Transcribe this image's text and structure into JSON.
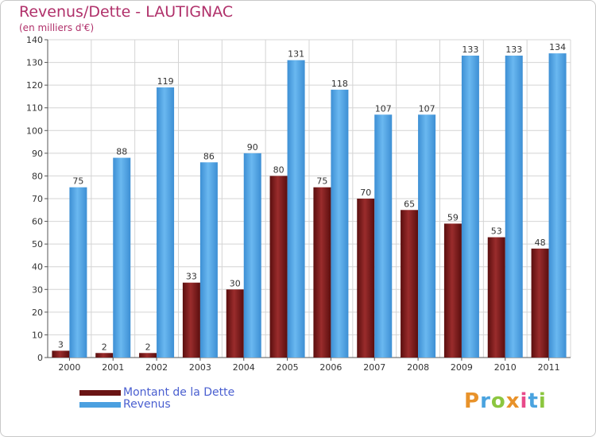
{
  "chart_data": {
    "type": "bar",
    "title": "Revenus/Dette - LAUTIGNAC",
    "subtitle": "(en milliers d'€)",
    "xlabel": "",
    "ylabel": "",
    "ylim": [
      0,
      140
    ],
    "yticks": [
      0,
      10,
      20,
      30,
      40,
      50,
      60,
      70,
      80,
      90,
      100,
      110,
      120,
      130,
      140
    ],
    "grid": true,
    "legend_position": "bottom-left",
    "categories": [
      "2000",
      "2001",
      "2002",
      "2003",
      "2004",
      "2005",
      "2006",
      "2007",
      "2008",
      "2009",
      "2010",
      "2011"
    ],
    "series": [
      {
        "name": "Montant de la Dette",
        "color": "#7a1a1a",
        "values": [
          3,
          2,
          2,
          33,
          30,
          80,
          75,
          70,
          65,
          59,
          53,
          48
        ]
      },
      {
        "name": "Revenus",
        "color": "#4ba0e0",
        "values": [
          75,
          88,
          119,
          86,
          90,
          131,
          118,
          107,
          107,
          133,
          133,
          134
        ]
      }
    ]
  },
  "branding": {
    "logo_text": "Proxiti",
    "logo_colors": [
      "#e8922a",
      "#4aa3df",
      "#8cc63f",
      "#e8922a",
      "#e84a8a",
      "#4aa3df",
      "#8cc63f"
    ]
  }
}
